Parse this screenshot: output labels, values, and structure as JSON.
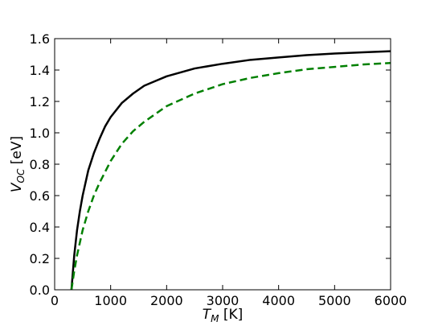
{
  "chart_data": {
    "type": "line",
    "title": "",
    "xlabel": {
      "main": "T",
      "sub": "M",
      "unit": " [K]"
    },
    "ylabel": {
      "main": "V",
      "sub": "OC",
      "unit": " [eV]"
    },
    "xlim": [
      0,
      6000
    ],
    "ylim": [
      0.0,
      1.6
    ],
    "xticks": [
      0,
      1000,
      2000,
      3000,
      4000,
      5000,
      6000
    ],
    "xtick_labels": [
      "0",
      "1000",
      "2000",
      "3000",
      "4000",
      "5000",
      "6000"
    ],
    "yticks": [
      0.0,
      0.2,
      0.4,
      0.6,
      0.8,
      1.0,
      1.2,
      1.4,
      1.6
    ],
    "ytick_labels": [
      "0.0",
      "0.2",
      "0.4",
      "0.6",
      "0.8",
      "1.0",
      "1.2",
      "1.4",
      "1.6"
    ],
    "grid": false,
    "legend": "none",
    "series": [
      {
        "style": "solid",
        "color": "#000000",
        "x": [
          300,
          350,
          400,
          450,
          500,
          600,
          700,
          800,
          900,
          1000,
          1200,
          1400,
          1600,
          1800,
          2000,
          2500,
          3000,
          3500,
          4000,
          4500,
          5000,
          5500,
          6000
        ],
        "y": [
          0.0,
          0.22,
          0.38,
          0.5,
          0.6,
          0.76,
          0.87,
          0.96,
          1.04,
          1.1,
          1.19,
          1.25,
          1.3,
          1.33,
          1.36,
          1.41,
          1.44,
          1.465,
          1.48,
          1.495,
          1.505,
          1.513,
          1.52
        ]
      },
      {
        "style": "dashed",
        "color": "#008000",
        "x": [
          300,
          350,
          400,
          450,
          500,
          600,
          700,
          800,
          900,
          1000,
          1200,
          1400,
          1600,
          1800,
          2000,
          2500,
          3000,
          3500,
          4000,
          4500,
          5000,
          5500,
          6000
        ],
        "y": [
          0.0,
          0.12,
          0.22,
          0.3,
          0.38,
          0.5,
          0.6,
          0.68,
          0.75,
          0.82,
          0.93,
          1.01,
          1.07,
          1.12,
          1.17,
          1.25,
          1.31,
          1.35,
          1.38,
          1.405,
          1.42,
          1.435,
          1.445
        ]
      }
    ]
  }
}
